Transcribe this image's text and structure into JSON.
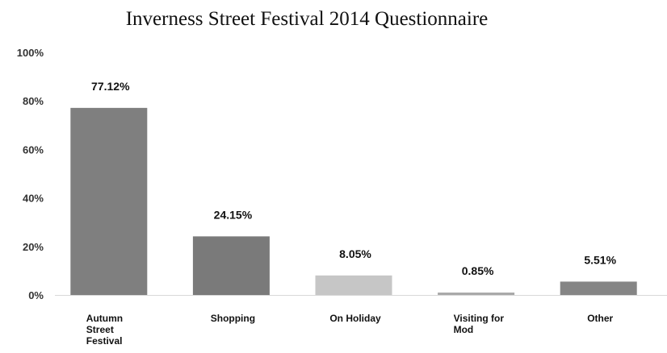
{
  "chart_data": {
    "type": "bar",
    "title": "Inverness Street Festival 2014 Questionnaire",
    "categories": [
      "Autumn Street Festival",
      "Shopping",
      "On Holiday",
      "Visiting for Mod",
      "Other"
    ],
    "category_lines": [
      [
        "Autumn",
        "Street",
        "Festival"
      ],
      [
        "Shopping"
      ],
      [
        "On Holiday"
      ],
      [
        "Visiting for",
        "Mod"
      ],
      [
        "Other"
      ]
    ],
    "values": [
      77.12,
      24.15,
      8.05,
      0.85,
      5.51
    ],
    "data_labels": [
      "77.12%",
      "24.15%",
      "8.05%",
      "0.85%",
      "5.51%"
    ],
    "bar_colors": [
      "#7f7f7f",
      "#7a7a7a",
      "#c6c6c6",
      "#a9a9a9",
      "#858585"
    ],
    "y_ticks": [
      "0%",
      "20%",
      "40%",
      "60%",
      "80%",
      "100%"
    ],
    "ylim": [
      0,
      100
    ],
    "xlabel": "",
    "ylabel": "",
    "grid": false,
    "legend": "none"
  }
}
